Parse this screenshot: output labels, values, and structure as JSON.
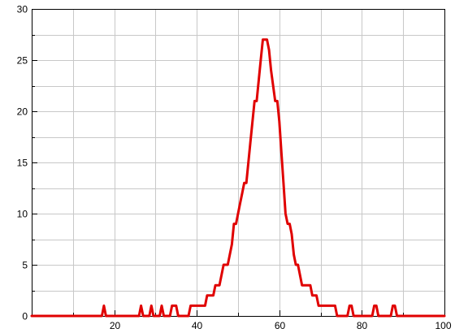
{
  "chart_data": {
    "type": "line",
    "title": "",
    "xlabel": "",
    "ylabel": "",
    "xlim": [
      0,
      100
    ],
    "ylim": [
      0,
      30
    ],
    "x_ticks": [
      20,
      40,
      60,
      80,
      100
    ],
    "y_ticks": [
      0,
      5,
      10,
      15,
      20,
      25,
      30
    ],
    "grid": true,
    "legend": "none",
    "line_color": "#e00000",
    "series": [
      {
        "points": [
          [
            0,
            0
          ],
          [
            17,
            0
          ],
          [
            17.5,
            1
          ],
          [
            18,
            0
          ],
          [
            26,
            0
          ],
          [
            26.5,
            1
          ],
          [
            27,
            0
          ],
          [
            28.5,
            0
          ],
          [
            29,
            1
          ],
          [
            29.5,
            0
          ],
          [
            31,
            0
          ],
          [
            31.5,
            1
          ],
          [
            32,
            0
          ],
          [
            33.5,
            0
          ],
          [
            34,
            1
          ],
          [
            35,
            1
          ],
          [
            35.5,
            0
          ],
          [
            38,
            0
          ],
          [
            38.5,
            1
          ],
          [
            42,
            1
          ],
          [
            42.5,
            2
          ],
          [
            44,
            2
          ],
          [
            44.5,
            3
          ],
          [
            45.5,
            3
          ],
          [
            46.5,
            5
          ],
          [
            47.5,
            5
          ],
          [
            48.5,
            7
          ],
          [
            49,
            9
          ],
          [
            49.5,
            9
          ],
          [
            50.5,
            11
          ],
          [
            51,
            12
          ],
          [
            51.5,
            13
          ],
          [
            52,
            13
          ],
          [
            53,
            17
          ],
          [
            54,
            21
          ],
          [
            54.5,
            21
          ],
          [
            55,
            23
          ],
          [
            55.5,
            25
          ],
          [
            56,
            27
          ],
          [
            57,
            27
          ],
          [
            57.5,
            26
          ],
          [
            58,
            24
          ],
          [
            59,
            21
          ],
          [
            59.5,
            21
          ],
          [
            60,
            19
          ],
          [
            60.5,
            16
          ],
          [
            61,
            13
          ],
          [
            61.5,
            10
          ],
          [
            62,
            9
          ],
          [
            62.5,
            9
          ],
          [
            63,
            8
          ],
          [
            63.5,
            6
          ],
          [
            64,
            5
          ],
          [
            64.5,
            5
          ],
          [
            65,
            4
          ],
          [
            65.5,
            3
          ],
          [
            67.5,
            3
          ],
          [
            68,
            2
          ],
          [
            69,
            2
          ],
          [
            69.5,
            1
          ],
          [
            73.5,
            1
          ],
          [
            74,
            0
          ],
          [
            76.5,
            0
          ],
          [
            77,
            1
          ],
          [
            77.5,
            1
          ],
          [
            78,
            0
          ],
          [
            82.5,
            0
          ],
          [
            83,
            1
          ],
          [
            83.5,
            1
          ],
          [
            84,
            0
          ],
          [
            87,
            0
          ],
          [
            87.5,
            1
          ],
          [
            88,
            1
          ],
          [
            88.5,
            0
          ],
          [
            100,
            0
          ]
        ]
      }
    ]
  }
}
